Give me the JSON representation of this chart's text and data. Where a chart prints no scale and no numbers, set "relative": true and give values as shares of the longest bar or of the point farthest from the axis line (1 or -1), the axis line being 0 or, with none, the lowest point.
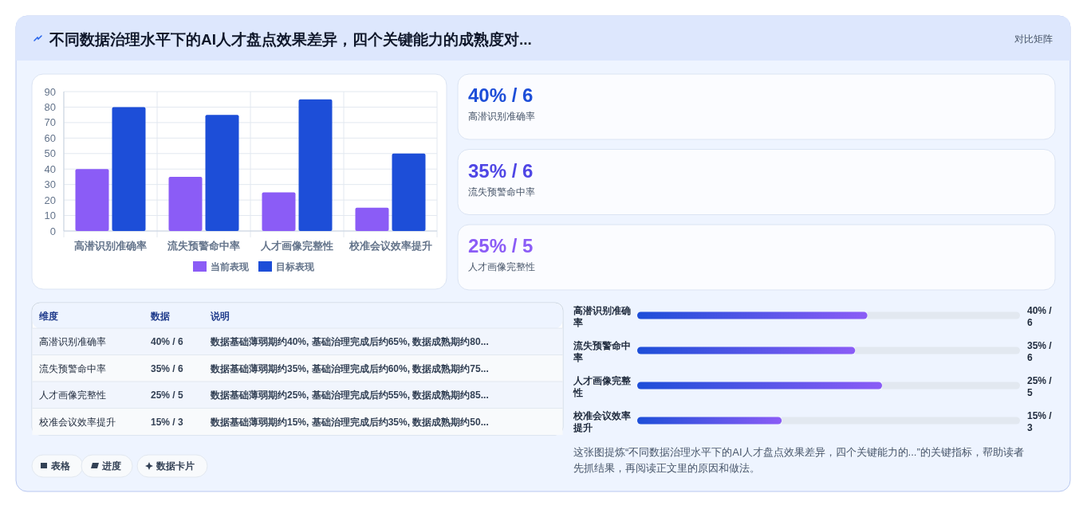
{
  "chart_data": [
    {
      "type": "bar",
      "title": "不同数据治理水平下的AI人才盘点效果差异，四个关键能力的成熟度对...",
      "categories": [
        "高潜识别准确率",
        "流失预警命中率",
        "人才画像完整性",
        "校准会议效率提升"
      ],
      "series": [
        {
          "name": "当前表现",
          "color": "#8b5cf6",
          "values": [
            40,
            35,
            25,
            15
          ]
        },
        {
          "name": "目标表现",
          "color": "#1d4ed8",
          "values": [
            80,
            75,
            85,
            50
          ]
        }
      ],
      "ylim": [
        0,
        90
      ],
      "yticks": [
        0,
        10,
        20,
        30,
        40,
        50,
        60,
        70,
        80,
        90
      ],
      "grid": true,
      "legend": "bottom",
      "annotations": [
        "对比矩阵",
        "表格",
        "进度",
        "数据卡片"
      ]
    },
    {
      "type": "other",
      "categories": [
        "高潜识别准确率",
        "流失预警命中率",
        "人才画像完整性"
      ],
      "value_labels": [
        "40% / 6",
        "35% / 6",
        "25% / 5"
      ]
    },
    {
      "type": "other",
      "categories": [
        "高潜识别准确率",
        "流失预警命中率",
        "人才画像完整性",
        "校准会议效率提升"
      ],
      "value_labels": [
        "40% / 6",
        "35% / 6",
        "25% / 5",
        "15% / 3"
      ],
      "annotations": [
        "维度",
        "数据",
        "说明",
        "数据基础薄弱期约40%, 基础治理完成后约65%, 数据成熟期约80...",
        "数据基础薄弱期约35%, 基础治理完成后约60%, 数据成熟期约75...",
        "数据基础薄弱期约25%, 基础治理完成后约55%, 数据成熟期约85...",
        "数据基础薄弱期约15%, 基础治理完成后约35%, 数据成熟期约50..."
      ]
    },
    {
      "type": "bar",
      "orientation": "horizontal",
      "relative": true,
      "categories": [
        "高潜识别准确率",
        "流失预警命中率",
        "人才画像完整性",
        "校准会议效率提升"
      ],
      "series": [
        {
          "color": "#8b5cf6",
          "values": [
            0.94,
            0.89,
            1,
            0.59
          ]
        }
      ],
      "annotations": [
        "40% / 6",
        "35% / 6",
        "25% / 5",
        "15% / 3",
        "这张图提炼“不同数据治理水平下的AI人才盘点效果差异，四个关键能力的...”的关键指标，帮助读者先抓结果，再阅读正文里的原因和做法。"
      ]
    }
  ]
}
